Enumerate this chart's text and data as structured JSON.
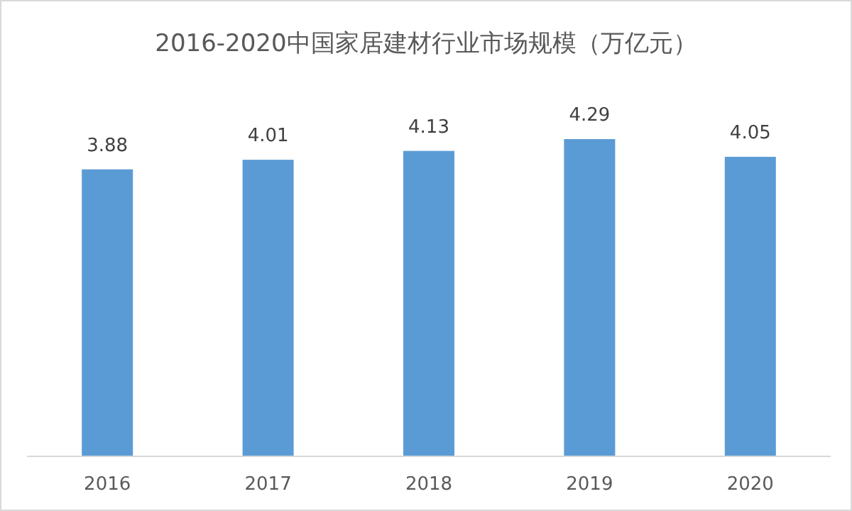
{
  "chart_data": {
    "type": "bar",
    "title": "2016-2020中国家居建材行业市场规模（万亿元）",
    "categories": [
      "2016",
      "2017",
      "2018",
      "2019",
      "2020"
    ],
    "values": [
      3.88,
      4.01,
      4.13,
      4.29,
      4.05
    ],
    "color": "#5b9bd5",
    "data_labels": true
  }
}
